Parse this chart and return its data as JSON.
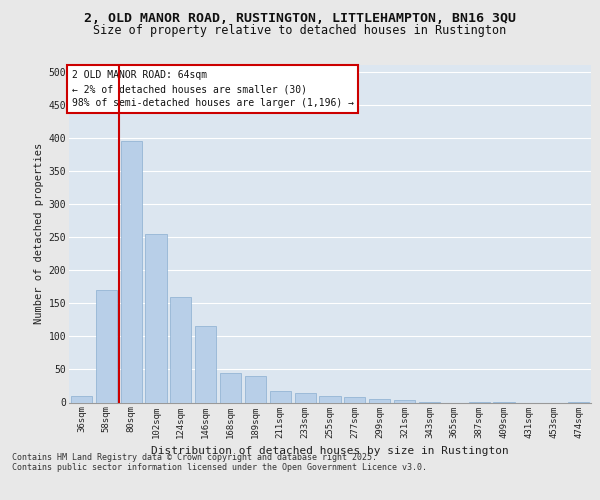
{
  "title": "2, OLD MANOR ROAD, RUSTINGTON, LITTLEHAMPTON, BN16 3QU",
  "subtitle": "Size of property relative to detached houses in Rustington",
  "xlabel": "Distribution of detached houses by size in Rustington",
  "ylabel": "Number of detached properties",
  "bar_color": "#b8cfe8",
  "bar_edge_color": "#8aaed0",
  "background_color": "#dce6f0",
  "grid_color": "#ffffff",
  "vline_color": "#cc0000",
  "annotation_text": "2 OLD MANOR ROAD: 64sqm\n← 2% of detached houses are smaller (30)\n98% of semi-detached houses are larger (1,196) →",
  "annotation_edge_color": "#cc0000",
  "categories": [
    "36sqm",
    "58sqm",
    "80sqm",
    "102sqm",
    "124sqm",
    "146sqm",
    "168sqm",
    "189sqm",
    "211sqm",
    "233sqm",
    "255sqm",
    "277sqm",
    "299sqm",
    "321sqm",
    "343sqm",
    "365sqm",
    "387sqm",
    "409sqm",
    "431sqm",
    "453sqm",
    "474sqm"
  ],
  "values": [
    10,
    170,
    395,
    255,
    160,
    115,
    45,
    40,
    18,
    15,
    10,
    8,
    6,
    4,
    1,
    0,
    1,
    1,
    0,
    0,
    1
  ],
  "ylim": [
    0,
    510
  ],
  "yticks": [
    0,
    50,
    100,
    150,
    200,
    250,
    300,
    350,
    400,
    450,
    500
  ],
  "footer_line1": "Contains HM Land Registry data © Crown copyright and database right 2025.",
  "footer_line2": "Contains public sector information licensed under the Open Government Licence v3.0.",
  "title_fontsize": 9.5,
  "subtitle_fontsize": 8.5,
  "ylabel_fontsize": 7.5,
  "xlabel_fontsize": 8,
  "tick_fontsize": 6.5,
  "footer_fontsize": 6,
  "fig_bg_color": "#e8e8e8",
  "vline_bin_index": 1
}
